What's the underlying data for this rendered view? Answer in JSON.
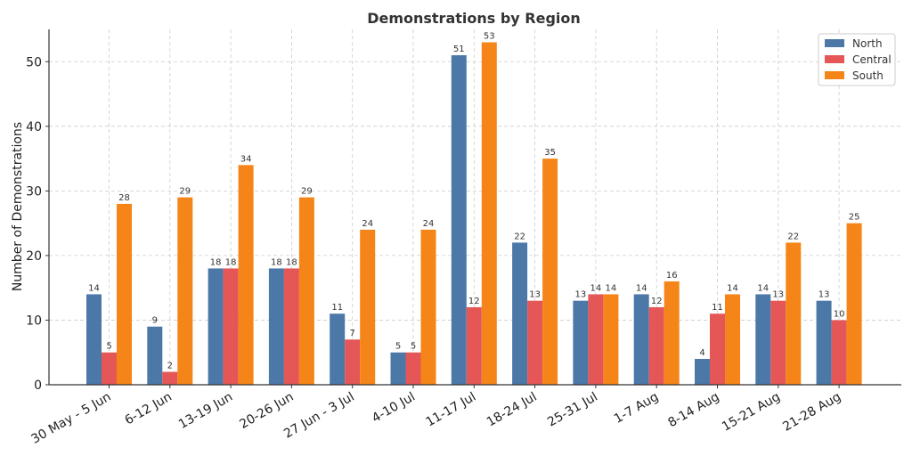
{
  "chart_data": {
    "type": "bar",
    "title": "Demonstrations by Region",
    "xlabel": "",
    "ylabel": "Number of Demonstrations",
    "ylim": [
      0,
      55
    ],
    "yticks": [
      0,
      10,
      20,
      30,
      40,
      50
    ],
    "grid": true,
    "legend_position": "top-right",
    "categories": [
      "30 May - 5 Jun",
      "6-12 Jun",
      "13-19 Jun",
      "20-26 Jun",
      "27 Jun - 3 Jul",
      "4-10 Jul",
      "11-17 Jul",
      "18-24 Jul",
      "25-31 Jul",
      "1-7 Aug",
      "8-14 Aug",
      "15-21 Aug",
      "21-28 Aug"
    ],
    "series": [
      {
        "name": "North",
        "color": "#4c78a8",
        "values": [
          14,
          9,
          18,
          18,
          11,
          5,
          51,
          22,
          13,
          14,
          4,
          14,
          13
        ]
      },
      {
        "name": "Central",
        "color": "#e45756",
        "values": [
          5,
          2,
          18,
          18,
          7,
          5,
          12,
          13,
          14,
          12,
          11,
          13,
          10
        ]
      },
      {
        "name": "South",
        "color": "#f58518",
        "values": [
          28,
          29,
          34,
          29,
          24,
          24,
          53,
          35,
          14,
          16,
          14,
          22,
          25
        ]
      }
    ]
  }
}
